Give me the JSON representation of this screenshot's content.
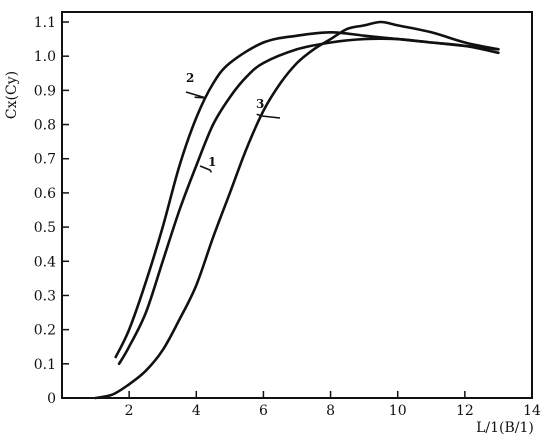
{
  "chart_data": {
    "type": "line",
    "title": "",
    "xlabel": "L/1(B/1)",
    "ylabel": "Cx(Cy)",
    "xlim": [
      0,
      14
    ],
    "ylim": [
      0,
      1.15
    ],
    "x_ticks": [
      2,
      4,
      6,
      8,
      10,
      12,
      14
    ],
    "x_tick_labels": [
      "2",
      "4",
      "6",
      "8",
      "10",
      "12",
      "14"
    ],
    "y_ticks": [
      0,
      0.1,
      0.2,
      0.3,
      0.4,
      0.5,
      0.6,
      0.7,
      0.8,
      0.9,
      1.0,
      1.1
    ],
    "y_tick_labels": [
      "0",
      "0.1",
      "0.2",
      "0.3",
      "0.4",
      "0.5",
      "0.6",
      "0.7",
      "0.8",
      "0.9",
      "1.0",
      "1.1"
    ],
    "grid": false,
    "legend": "none",
    "series": [
      {
        "label": "1",
        "points": [
          [
            1.7,
            0.1
          ],
          [
            2.0,
            0.15
          ],
          [
            2.5,
            0.25
          ],
          [
            3.0,
            0.4
          ],
          [
            3.5,
            0.55
          ],
          [
            4.0,
            0.68
          ],
          [
            4.5,
            0.8
          ],
          [
            5.0,
            0.88
          ],
          [
            5.5,
            0.94
          ],
          [
            6.0,
            0.98
          ],
          [
            7.0,
            1.02
          ],
          [
            8.0,
            1.04
          ],
          [
            9.0,
            1.05
          ],
          [
            10.0,
            1.05
          ],
          [
            11.0,
            1.04
          ],
          [
            12.0,
            1.03
          ],
          [
            13.0,
            1.01
          ]
        ]
      },
      {
        "label": "2",
        "points": [
          [
            1.6,
            0.12
          ],
          [
            2.0,
            0.2
          ],
          [
            2.5,
            0.34
          ],
          [
            3.0,
            0.5
          ],
          [
            3.5,
            0.68
          ],
          [
            4.0,
            0.82
          ],
          [
            4.5,
            0.92
          ],
          [
            5.0,
            0.98
          ],
          [
            6.0,
            1.04
          ],
          [
            7.0,
            1.06
          ],
          [
            8.0,
            1.07
          ],
          [
            9.0,
            1.06
          ],
          [
            10.0,
            1.05
          ],
          [
            11.0,
            1.04
          ],
          [
            12.0,
            1.03
          ],
          [
            13.0,
            1.02
          ]
        ]
      },
      {
        "label": "3",
        "points": [
          [
            1.0,
            0.0
          ],
          [
            1.5,
            0.01
          ],
          [
            2.0,
            0.04
          ],
          [
            2.5,
            0.08
          ],
          [
            3.0,
            0.14
          ],
          [
            3.5,
            0.23
          ],
          [
            4.0,
            0.33
          ],
          [
            4.5,
            0.47
          ],
          [
            5.0,
            0.6
          ],
          [
            5.5,
            0.73
          ],
          [
            6.0,
            0.84
          ],
          [
            6.5,
            0.92
          ],
          [
            7.0,
            0.98
          ],
          [
            7.5,
            1.02
          ],
          [
            8.0,
            1.05
          ],
          [
            8.5,
            1.08
          ],
          [
            9.0,
            1.09
          ],
          [
            9.5,
            1.1
          ],
          [
            10.0,
            1.09
          ],
          [
            11.0,
            1.07
          ],
          [
            12.0,
            1.04
          ],
          [
            13.0,
            1.02
          ]
        ]
      }
    ],
    "annotations": [
      {
        "text": "2",
        "series": "2",
        "anchor": [
          3.9,
          0.88
        ]
      },
      {
        "text": "1",
        "series": "1",
        "anchor": [
          4.5,
          0.66
        ]
      },
      {
        "text": "3",
        "series": "3",
        "anchor": [
          5.8,
          0.83
        ]
      }
    ]
  }
}
